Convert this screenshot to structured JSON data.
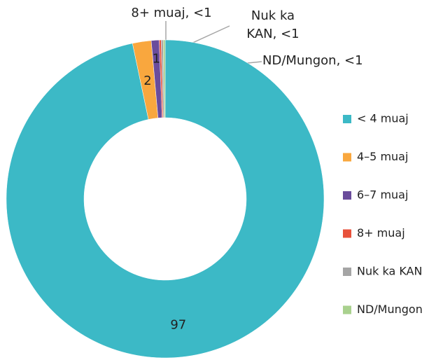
{
  "chart_data": {
    "type": "donut",
    "categories": [
      "< 4 muaj",
      "4–5 muaj",
      "6–7 muaj",
      "8+ muaj",
      "Nuk ka KAN",
      "ND/Mungon"
    ],
    "values": [
      96.7,
      1.9,
      0.8,
      0.2,
      0.2,
      0.2
    ],
    "value_labels": [
      "97",
      "2",
      "1",
      null,
      null,
      null
    ],
    "colors": [
      "#3cb9c6",
      "#f9a73e",
      "#6a4c9c",
      "#e8513b",
      "#a5a5a5",
      "#a9d18e"
    ],
    "annotations": [
      "8+ muaj, <1",
      "Nuk ka KAN, <1",
      "ND/Mungon, <1"
    ],
    "legend": "right"
  }
}
